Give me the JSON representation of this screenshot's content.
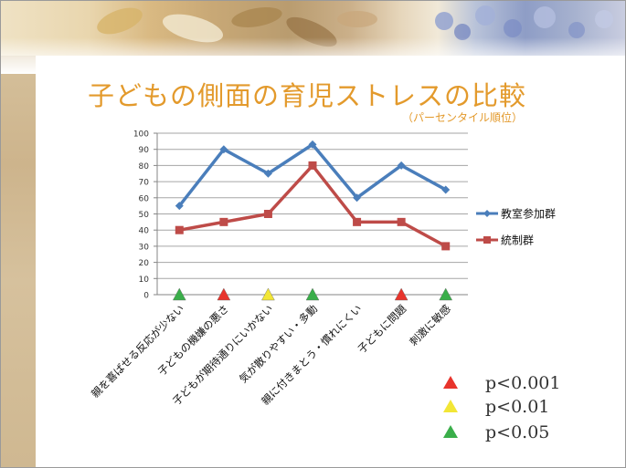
{
  "slide": {
    "title": "子どもの側面の育児ストレスの比較",
    "subtitle": "（パーセンタイル順位）"
  },
  "chart_data": {
    "type": "line",
    "categories": [
      "親を喜ばせる反応が少ない",
      "子どもの機嫌の悪さ",
      "子どもが期待通りにいかない",
      "気が散りやすい・多動",
      "親に付きまとう・慣れにくい",
      "子どもに問題",
      "刺激に敏感"
    ],
    "series": [
      {
        "name": "教室参加群",
        "color": "#4a7ebb",
        "values": [
          55,
          90,
          75,
          93,
          60,
          80,
          65
        ]
      },
      {
        "name": "統制群",
        "color": "#be4b48",
        "values": [
          40,
          45,
          50,
          80,
          45,
          45,
          30
        ]
      }
    ],
    "y_ticks": [
      "0",
      "10",
      "20",
      "30",
      "40",
      "50",
      "60",
      "70",
      "80",
      "90",
      "100"
    ],
    "ylim": [
      0,
      100
    ],
    "grid": true,
    "legend": "right",
    "significance_markers": [
      {
        "category_index": 0,
        "level": "green"
      },
      {
        "category_index": 1,
        "level": "red"
      },
      {
        "category_index": 2,
        "level": "yellow"
      },
      {
        "category_index": 3,
        "level": "green"
      },
      {
        "category_index": 5,
        "level": "red"
      },
      {
        "category_index": 6,
        "level": "green"
      }
    ],
    "significance_legend": [
      {
        "level": "red",
        "color": "#e8342c",
        "label": "p<0.001"
      },
      {
        "level": "yellow",
        "color": "#f2e636",
        "label": "p<0.01"
      },
      {
        "level": "green",
        "color": "#3aae4a",
        "label": "p<0.05"
      }
    ]
  }
}
